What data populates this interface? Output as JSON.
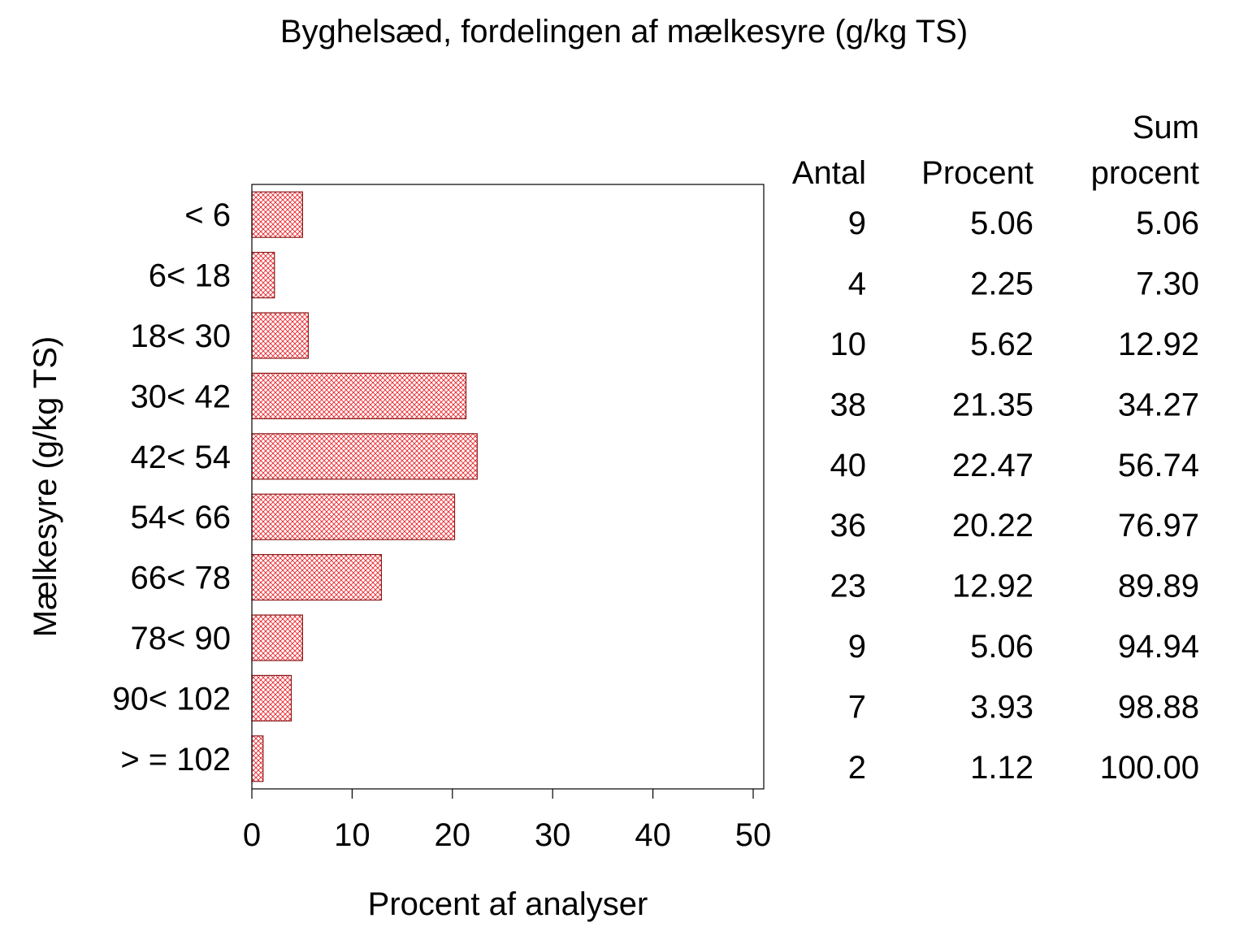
{
  "chart_data": {
    "type": "bar",
    "orientation": "horizontal",
    "title": "Byghelsæd, fordelingen af mælkesyre (g/kg TS)",
    "xlabel": "Procent af analyser",
    "ylabel": "Mælkesyre (g/kg TS)",
    "xlim": [
      0,
      50
    ],
    "xticks": [
      "0",
      "10",
      "20",
      "30",
      "40",
      "50"
    ],
    "grid": false,
    "bar_fill": "crosshatch",
    "bar_color": "#e8262c",
    "categories": [
      "< 6",
      "6< 18",
      "18< 30",
      "30< 42",
      "42< 54",
      "54< 66",
      "66< 78",
      "78< 90",
      "90< 102",
      "> = 102"
    ],
    "values": [
      5.06,
      2.25,
      5.62,
      21.35,
      22.47,
      20.22,
      12.92,
      5.06,
      3.93,
      1.12
    ],
    "table": {
      "header_sum_line1": "Sum",
      "columns": [
        "Antal",
        "Procent",
        "procent"
      ],
      "rows": [
        [
          "9",
          "5.06",
          "5.06"
        ],
        [
          "4",
          "2.25",
          "7.30"
        ],
        [
          "10",
          "5.62",
          "12.92"
        ],
        [
          "38",
          "21.35",
          "34.27"
        ],
        [
          "40",
          "22.47",
          "56.74"
        ],
        [
          "36",
          "20.22",
          "76.97"
        ],
        [
          "23",
          "12.92",
          "89.89"
        ],
        [
          "9",
          "5.06",
          "94.94"
        ],
        [
          "7",
          "3.93",
          "98.88"
        ],
        [
          "2",
          "1.12",
          "100.00"
        ]
      ]
    }
  }
}
